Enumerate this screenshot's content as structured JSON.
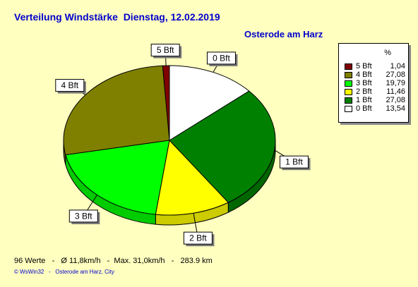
{
  "header": {
    "title": "Verteilung Windstärke  Dienstag, 12.02.2019",
    "location": "Osterode am Harz"
  },
  "legend": {
    "percent_header": "%"
  },
  "chart_data": {
    "type": "pie",
    "slices": [
      {
        "label": "5 Bft",
        "value": 1.04,
        "value_text": "1,04",
        "color": "#800000"
      },
      {
        "label": "4 Bft",
        "value": 27.08,
        "value_text": "27,08",
        "color": "#808000"
      },
      {
        "label": "3 Bft",
        "value": 19.79,
        "value_text": "19,79",
        "color": "#00ff00"
      },
      {
        "label": "2 Bft",
        "value": 11.46,
        "value_text": "11,46",
        "color": "#ffff00"
      },
      {
        "label": "1 Bft",
        "value": 27.08,
        "value_text": "27,08",
        "color": "#008000"
      },
      {
        "label": "0 Bft",
        "value": 13.54,
        "value_text": "13,54",
        "color": "#ffffff"
      }
    ]
  },
  "footer": {
    "stats": "96 Werte   -   Ø 11,8km/h   -  Max. 31,0km/h   -   283.9 km",
    "credit": "© WsWin32   -   Osterode am Harz, City"
  }
}
